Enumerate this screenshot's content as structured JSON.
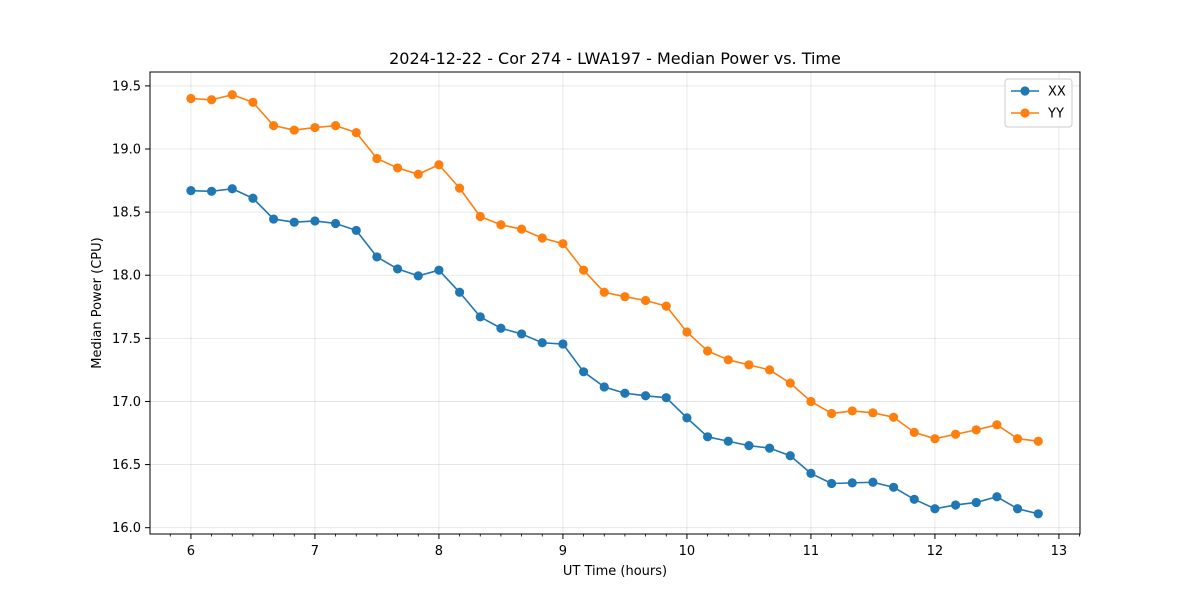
{
  "chart_data": {
    "type": "line",
    "title": "2024-12-22 - Cor 274 - LWA197 - Median Power vs. Time",
    "xlabel": "UT Time (hours)",
    "ylabel": "Median Power (CPU)",
    "xlim": [
      5.67,
      13.17
    ],
    "ylim": [
      15.95,
      19.61
    ],
    "xticks": [
      6,
      7,
      8,
      9,
      10,
      11,
      12,
      13
    ],
    "xtick_labels": [
      "6",
      "7",
      "8",
      "9",
      "10",
      "11",
      "12",
      "13"
    ],
    "yticks": [
      16.0,
      16.5,
      17.0,
      17.5,
      18.0,
      18.5,
      19.0,
      19.5
    ],
    "ytick_labels": [
      "16.0",
      "16.5",
      "17.0",
      "17.5",
      "18.0",
      "18.5",
      "19.0",
      "19.5"
    ],
    "grid": true,
    "legend_position": "top-right",
    "x": [
      6.0,
      6.1667,
      6.3333,
      6.5,
      6.6667,
      6.8333,
      7.0,
      7.1667,
      7.3333,
      7.5,
      7.6667,
      7.8333,
      8.0,
      8.1667,
      8.3333,
      8.5,
      8.6667,
      8.8333,
      9.0,
      9.1667,
      9.3333,
      9.5,
      9.6667,
      9.8333,
      10.0,
      10.1667,
      10.3333,
      10.5,
      10.6667,
      10.8333,
      11.0,
      11.1667,
      11.3333,
      11.5,
      11.6667,
      11.8333,
      12.0,
      12.1667,
      12.3333,
      12.5,
      12.6667,
      12.8333
    ],
    "series": [
      {
        "name": "XX",
        "color": "#1f77b4",
        "values": [
          18.67,
          18.665,
          18.685,
          18.61,
          18.445,
          18.42,
          18.43,
          18.41,
          18.355,
          18.145,
          18.05,
          17.995,
          18.04,
          17.865,
          17.67,
          17.58,
          17.535,
          17.465,
          17.455,
          17.235,
          17.115,
          17.065,
          17.045,
          17.03,
          16.87,
          16.72,
          16.685,
          16.65,
          16.63,
          16.57,
          16.43,
          16.35,
          16.355,
          16.36,
          16.32,
          16.225,
          16.15,
          16.18,
          16.2,
          16.245,
          16.15,
          16.11
        ]
      },
      {
        "name": "YY",
        "color": "#ff7f0e",
        "values": [
          19.4,
          19.39,
          19.43,
          19.37,
          19.185,
          19.15,
          19.17,
          19.185,
          19.13,
          18.925,
          18.85,
          18.8,
          18.875,
          18.69,
          18.465,
          18.4,
          18.365,
          18.295,
          18.25,
          18.04,
          17.865,
          17.83,
          17.8,
          17.755,
          17.55,
          17.4,
          17.33,
          17.29,
          17.25,
          17.145,
          17.0,
          16.905,
          16.925,
          16.91,
          16.875,
          16.755,
          16.705,
          16.74,
          16.775,
          16.815,
          16.705,
          16.685
        ]
      }
    ]
  }
}
